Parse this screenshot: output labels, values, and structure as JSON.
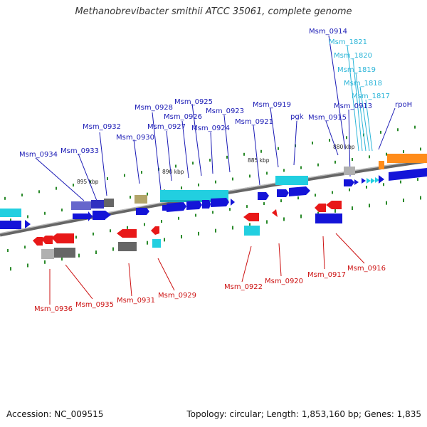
{
  "title": "Methanobrevibacter smithii ATCC 35061, complete genome",
  "footer": {
    "accession": "Accession: NC_009515",
    "summary": "Topology: circular; Length: 1,853,160 bp; Genes: 1,835"
  },
  "scale_labels": [
    "895 kbp",
    "890 kbp",
    "885 kbp",
    "880 kbp"
  ],
  "colors": {
    "forward_label": "#1a1ab5",
    "reverse_label": "#cc1111",
    "rna_label": "#2bb5d8",
    "backbone": "#888888",
    "tick": "#2a8a2a"
  },
  "genes_forward": [
    "Msm_0934",
    "Msm_0933",
    "Msm_0932",
    "Msm_0930",
    "Msm_0928",
    "Msm_0927",
    "Msm_0926",
    "Msm_0925",
    "Msm_0924",
    "Msm_0923",
    "Msm_0921",
    "Msm_0919",
    "pgk",
    "Msm_0915",
    "Msm_0913",
    "Msm_0914",
    "rpoH"
  ],
  "genes_rna": [
    "Msm_1821",
    "Msm_1820",
    "Msm_1819",
    "Msm_1818",
    "Msm_1817"
  ],
  "genes_reverse": [
    "Msm_0936",
    "Msm_0935",
    "Msm_0931",
    "Msm_0929",
    "Msm_0922",
    "Msm_0920",
    "Msm_0917",
    "Msm_0916"
  ]
}
